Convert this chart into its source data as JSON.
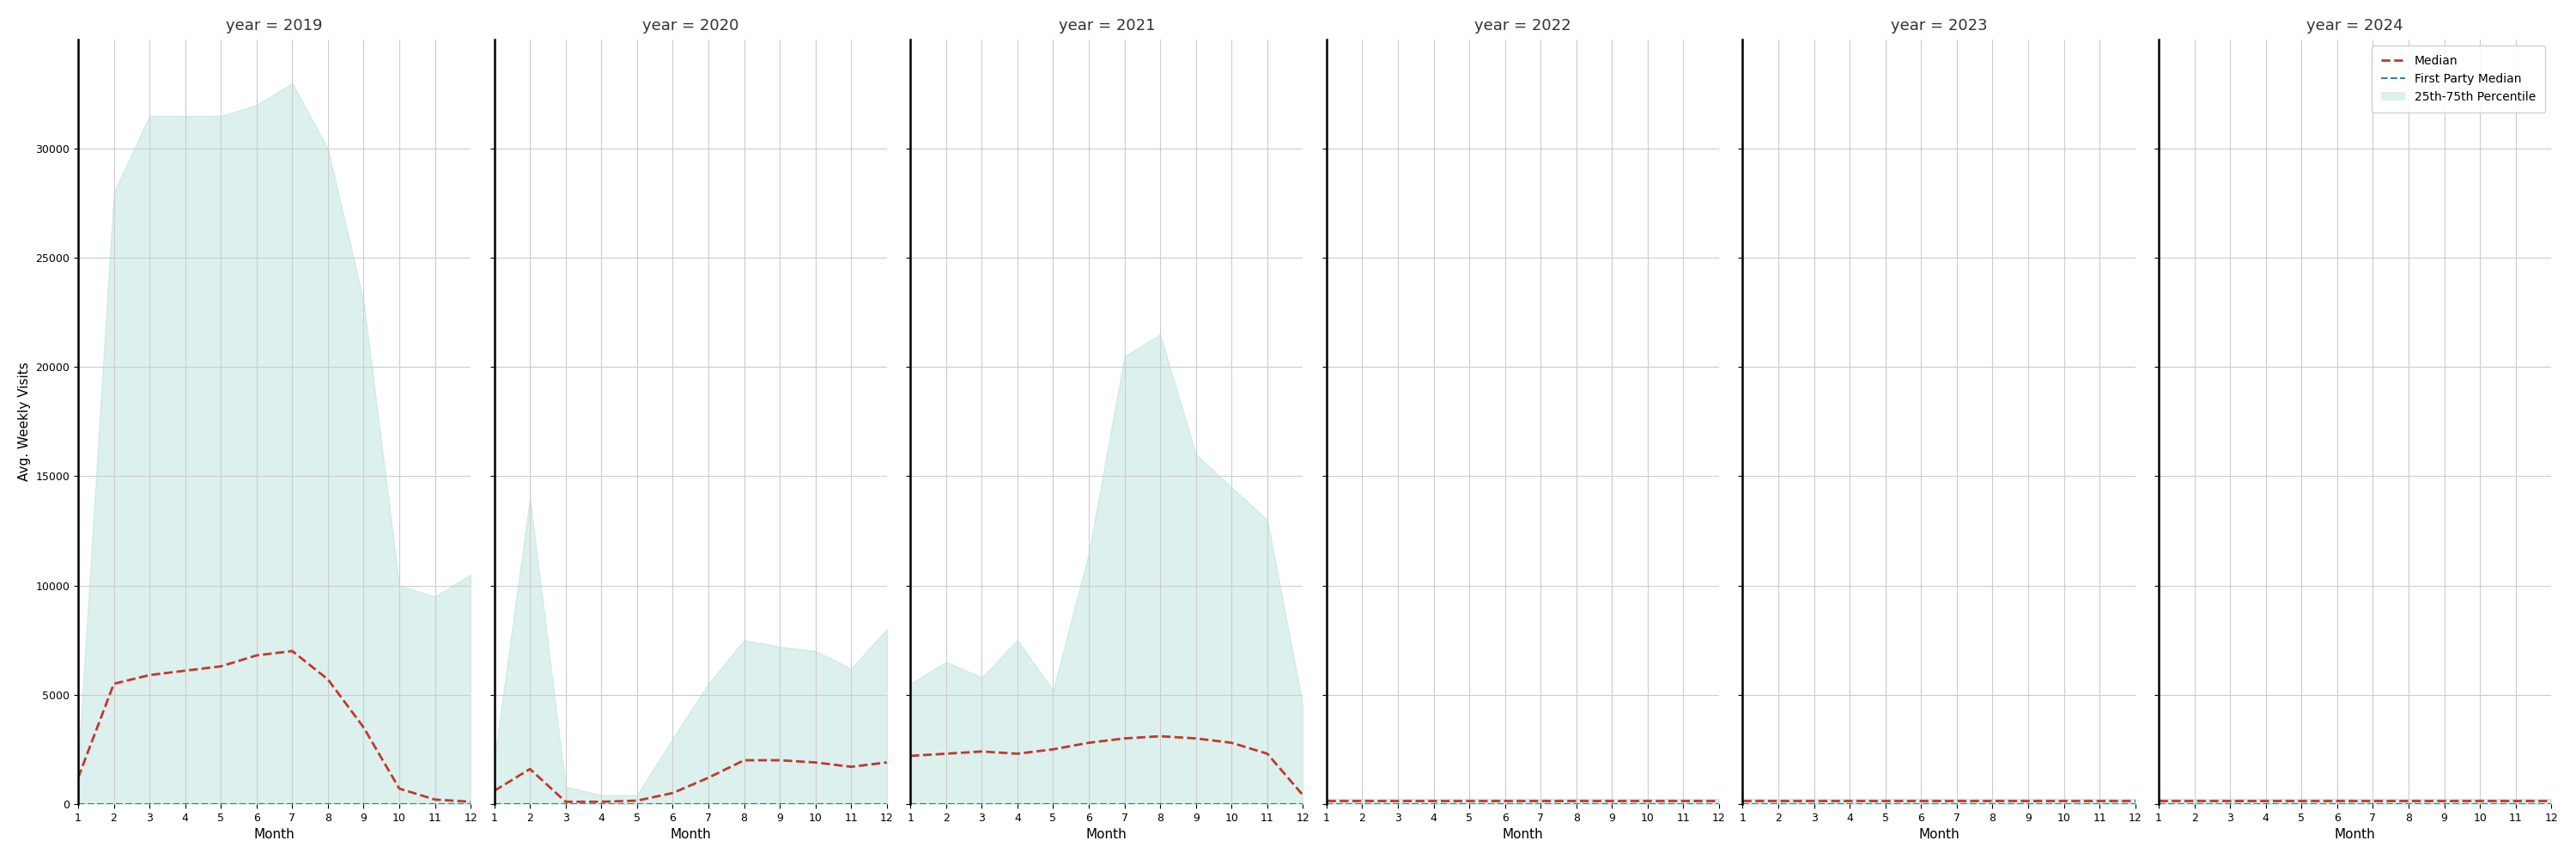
{
  "years": [
    2019,
    2020,
    2021,
    2022,
    2023,
    2024
  ],
  "months": [
    1,
    2,
    3,
    4,
    5,
    6,
    7,
    8,
    9,
    10,
    11,
    12
  ],
  "median": {
    "2019": [
      1200,
      5500,
      5900,
      6100,
      6300,
      6800,
      7000,
      5700,
      3500,
      700,
      200,
      100
    ],
    "2020": [
      600,
      1600,
      100,
      100,
      150,
      500,
      1200,
      2000,
      2000,
      1900,
      1700,
      1900
    ],
    "2021": [
      2200,
      2300,
      2400,
      2300,
      2500,
      2800,
      3000,
      3100,
      3000,
      2800,
      2300,
      400
    ],
    "2022": [
      150,
      150,
      150,
      150,
      150,
      150,
      150,
      150,
      150,
      150,
      150,
      150
    ],
    "2023": [
      150,
      150,
      150,
      150,
      150,
      150,
      150,
      150,
      150,
      150,
      150,
      150
    ],
    "2024": [
      150,
      150,
      150,
      150,
      150,
      150,
      150,
      150,
      150,
      150,
      150,
      150
    ]
  },
  "p25": {
    "2019": [
      0,
      0,
      0,
      0,
      0,
      0,
      0,
      0,
      0,
      0,
      0,
      0
    ],
    "2020": [
      0,
      0,
      0,
      0,
      0,
      0,
      0,
      0,
      0,
      0,
      0,
      0
    ],
    "2021": [
      0,
      0,
      0,
      0,
      0,
      0,
      0,
      0,
      0,
      0,
      0,
      0
    ],
    "2022": [
      0,
      0,
      0,
      0,
      0,
      0,
      0,
      0,
      0,
      0,
      0,
      0
    ],
    "2023": [
      0,
      0,
      0,
      0,
      0,
      0,
      0,
      0,
      0,
      0,
      0,
      0
    ],
    "2024": [
      0,
      0,
      0,
      0,
      0,
      0,
      0,
      0,
      0,
      0,
      0,
      0
    ]
  },
  "p75": {
    "2019": [
      1800,
      28000,
      31500,
      31500,
      31500,
      32000,
      33000,
      30000,
      23000,
      10000,
      9500,
      10500
    ],
    "2020": [
      2000,
      14000,
      800,
      400,
      400,
      3000,
      5500,
      7500,
      7200,
      7000,
      6200,
      8000
    ],
    "2021": [
      5500,
      6500,
      5800,
      7500,
      5200,
      11500,
      20500,
      21500,
      16000,
      14500,
      13000,
      4500
    ],
    "2022": [
      250,
      250,
      250,
      250,
      250,
      250,
      250,
      250,
      250,
      250,
      250,
      250
    ],
    "2023": [
      250,
      250,
      250,
      250,
      250,
      250,
      250,
      250,
      250,
      250,
      250,
      250
    ],
    "2024": [
      250,
      250,
      250,
      250,
      250,
      250,
      250,
      250,
      250,
      250,
      250,
      250
    ]
  },
  "fill_color": "#b2dfdb",
  "fill_alpha": 0.45,
  "median_color": "#c0392b",
  "fp_color": "#3a7abf",
  "background_color": "#ffffff",
  "grid_color": "#cccccc",
  "ylabel": "Avg. Weekly Visits",
  "xlabel": "Month",
  "ylim": [
    0,
    35000
  ],
  "yticks": [
    0,
    5000,
    10000,
    15000,
    20000,
    25000,
    30000
  ],
  "figsize": [
    30,
    10
  ],
  "title_fontsize": 13,
  "axis_fontsize": 11,
  "tick_fontsize": 9,
  "legend_fontsize": 10
}
